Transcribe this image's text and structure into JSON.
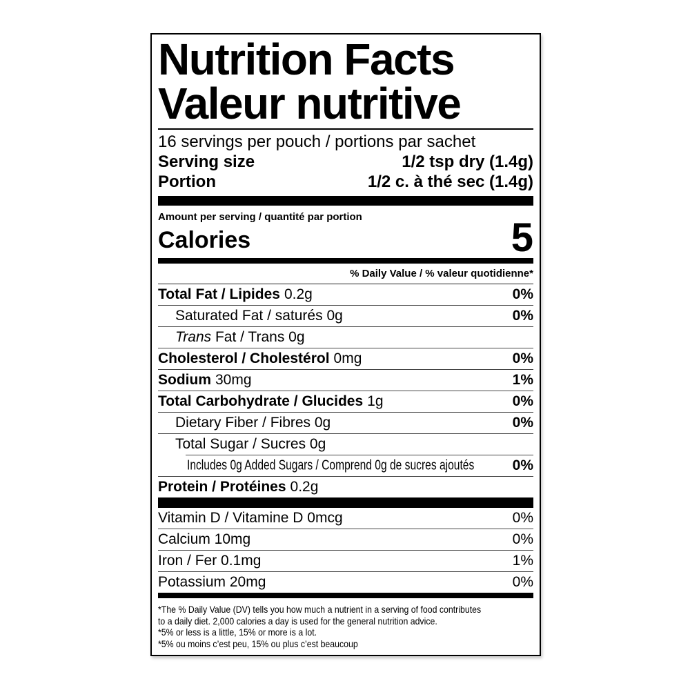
{
  "title": {
    "en": "Nutrition Facts",
    "fr": "Valeur nutritive"
  },
  "serving": {
    "per_container": "16 servings per pouch / portions par sachet",
    "size_label": "Serving size",
    "size_value": "1/2 tsp dry (1.4g)",
    "portion_label": "Portion",
    "portion_value": "1/2 c. à thé sec (1.4g)"
  },
  "calories": {
    "header": "Amount per serving / quantité par portion",
    "label": "Calories",
    "value": "5"
  },
  "dv_header": "% Daily Value / % valeur quotidienne*",
  "nutrients": [
    {
      "name": "Total Fat / Lipides",
      "amount": "0.2g",
      "dv": "0%"
    },
    {
      "name": "Saturated Fat / saturés 0g",
      "dv": "0%"
    },
    {
      "name_italic": "Trans",
      "name_rest": " Fat / Trans 0g"
    },
    {
      "name": "Cholesterol / Cholestérol",
      "amount": "0mg",
      "dv": "0%"
    },
    {
      "name": "Sodium",
      "amount": "30mg",
      "dv": "1%"
    },
    {
      "name": "Total Carbohydrate / Glucides",
      "amount": "1g",
      "dv": "0%"
    },
    {
      "name": "Dietary Fiber / Fibres 0g",
      "dv": "0%"
    },
    {
      "name": "Total Sugar / Sucres 0g"
    },
    {
      "name": "Includes 0g Added Sugars / Comprend 0g de sucres ajoutés",
      "dv": "0%"
    },
    {
      "name": "Protein / Protéines",
      "amount": "0.2g"
    }
  ],
  "micronutrients": [
    {
      "name": "Vitamin D / Vitamine D 0mcg",
      "dv": "0%"
    },
    {
      "name": "Calcium 10mg",
      "dv": "0%"
    },
    {
      "name": "Iron / Fer 0.1mg",
      "dv": "1%"
    },
    {
      "name": "Potassium 20mg",
      "dv": "0%"
    }
  ],
  "footnotes": [
    "*The % Daily Value (DV) tells you how much a nutrient in a serving of food contributes",
    "to a daily diet. 2,000 calories a day is used for the general nutrition advice.",
    "*5% or less is a little, 15% or more is a lot.",
    "*5% ou moins c’est peu, 15% ou plus c’est beaucoup"
  ],
  "colors": {
    "ink": "#000000",
    "background": "#ffffff",
    "separator": "#444444"
  }
}
